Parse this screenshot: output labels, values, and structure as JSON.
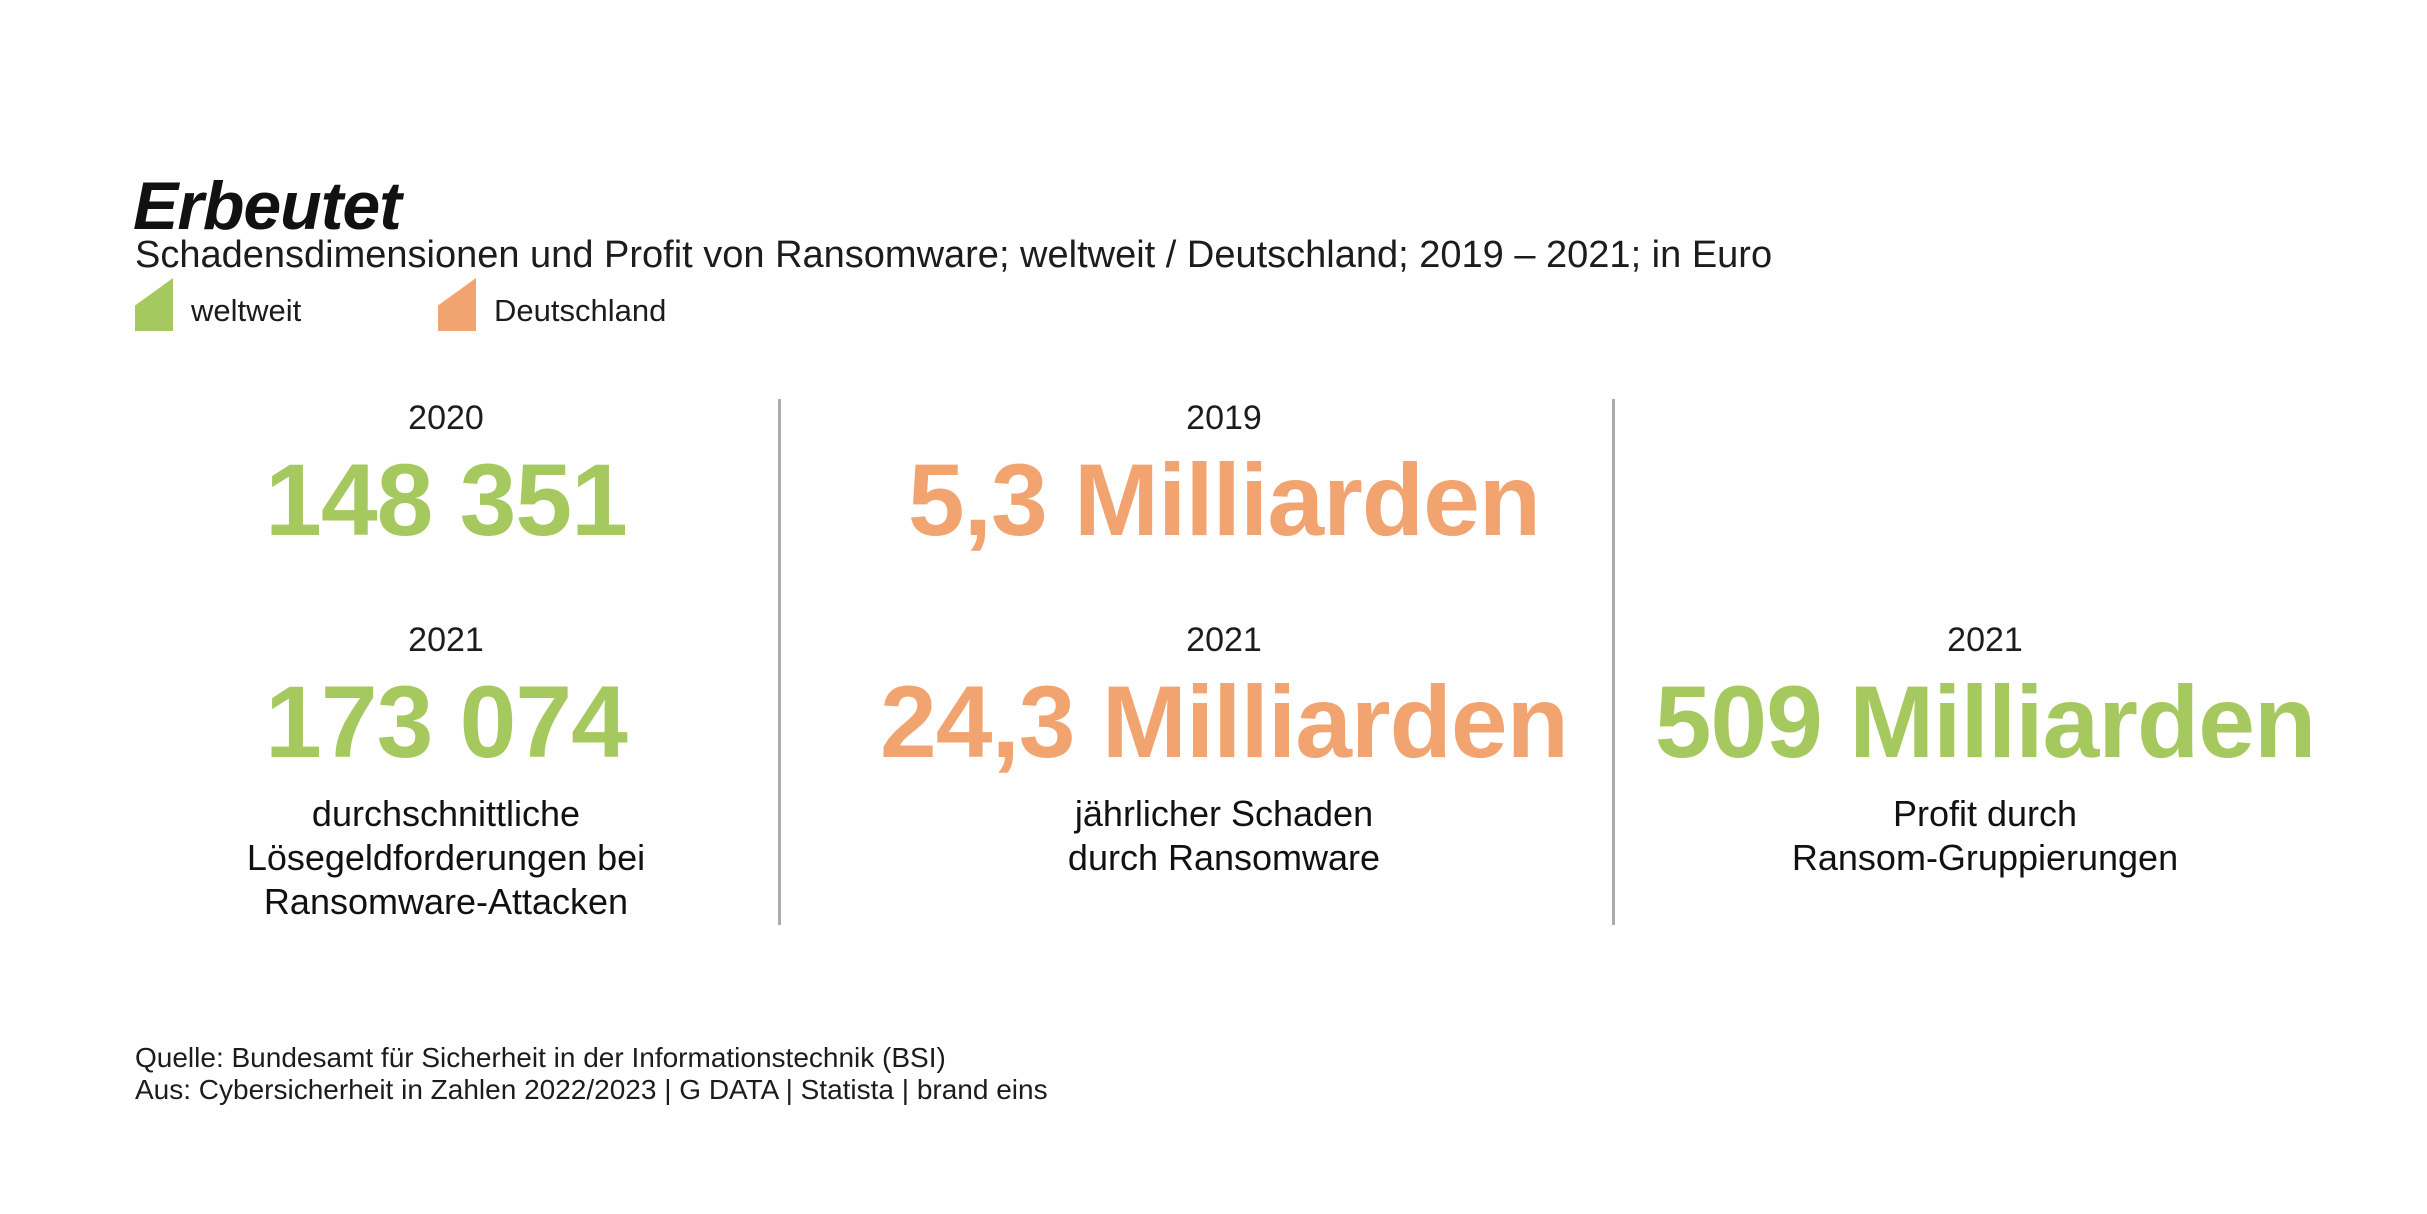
{
  "header": {
    "title": "Erbeutet",
    "subtitle": "Schadensdimensionen und Profit von Ransomware; weltweit / Deutschland; 2019 – 2021; in Euro"
  },
  "legend": {
    "items": [
      {
        "label": "weltweit",
        "color": "#a5c95e"
      },
      {
        "label": "Deutschland",
        "color": "#f2a470"
      }
    ]
  },
  "stats": {
    "col1": {
      "row1": {
        "year": "2020",
        "value": "148 351"
      },
      "row2": {
        "year": "2021",
        "value": "173 074"
      },
      "caption": [
        "durchschnittliche",
        "Lösegeldforderungen bei",
        "Ransomware-Attacken"
      ],
      "region": "weltweit"
    },
    "col2": {
      "row1": {
        "year": "2019",
        "value": "5,3 Milliarden"
      },
      "row2": {
        "year": "2021",
        "value": "24,3 Milliarden"
      },
      "caption": [
        "jährlicher Schaden",
        "durch Ransomware"
      ],
      "region": "Deutschland"
    },
    "col3": {
      "row2": {
        "year": "2021",
        "value": "509 Milliarden"
      },
      "caption": [
        "Profit durch",
        "Ransom-Gruppierungen"
      ],
      "region": "weltweit"
    }
  },
  "footer": {
    "source_line1": "Quelle: Bundesamt für Sicherheit in der Informationstechnik (BSI)",
    "source_line2": "Aus: Cybersicherheit in Zahlen 2022/2023 | G DATA | Statista | brand eins"
  },
  "colors": {
    "green": "#a5c95e",
    "orange": "#f2a470",
    "divider": "#ababab",
    "text": "#1c1c1c",
    "background": "#ffffff"
  },
  "chart_data": {
    "type": "table",
    "title": "Erbeutet",
    "subtitle": "Schadensdimensionen und Profit von Ransomware; weltweit / Deutschland; 2019 – 2021; in Euro",
    "unit": "Euro",
    "legend": [
      "weltweit",
      "Deutschland"
    ],
    "series": [
      {
        "name": "durchschnittliche Lösegeldforderungen bei Ransomware-Attacken",
        "region": "weltweit",
        "color": "#a5c95e",
        "points": [
          {
            "year": 2020,
            "value": 148351,
            "label": "148 351"
          },
          {
            "year": 2021,
            "value": 173074,
            "label": "173 074"
          }
        ]
      },
      {
        "name": "jährlicher Schaden durch Ransomware",
        "region": "Deutschland",
        "color": "#f2a470",
        "points": [
          {
            "year": 2019,
            "value": 5300000000,
            "label": "5,3 Milliarden"
          },
          {
            "year": 2021,
            "value": 24300000000,
            "label": "24,3 Milliarden"
          }
        ]
      },
      {
        "name": "Profit durch Ransom-Gruppierungen",
        "region": "weltweit",
        "color": "#a5c95e",
        "points": [
          {
            "year": 2021,
            "value": 509000000000,
            "label": "509 Milliarden"
          }
        ]
      }
    ]
  }
}
